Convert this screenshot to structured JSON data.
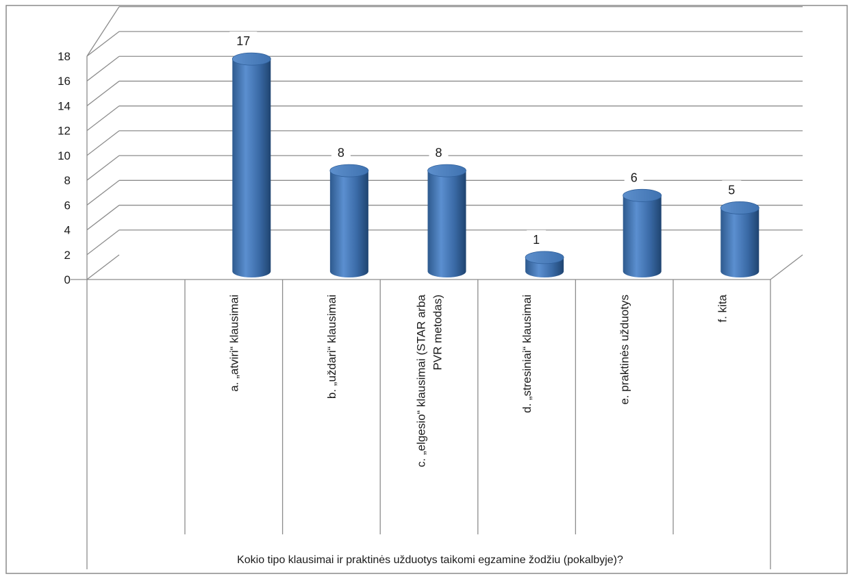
{
  "chart_data": {
    "type": "bar",
    "title": "",
    "xlabel": "Kokio tipo klausimai ir praktinės užduotys taikomi egzamine žodžiu (pokalbyje)?",
    "ylabel": "",
    "ylim": [
      0,
      18
    ],
    "yticks": [
      0,
      2,
      4,
      6,
      8,
      10,
      12,
      14,
      16,
      18
    ],
    "grid": true,
    "categories": [
      [
        "a. „atviri“ klausimai"
      ],
      [
        "b. „uždari“ klausimai"
      ],
      [
        "c. „elgesio“ klausimai (STAR arba",
        "PVR metodas)"
      ],
      [
        "d. „stresiniai“ klausimai"
      ],
      [
        "e. praktinės užduotys"
      ],
      [
        "f. kita"
      ]
    ],
    "values": [
      17,
      8,
      8,
      1,
      6,
      5
    ],
    "data_labels": [
      "17",
      "8",
      "8",
      "1",
      "6",
      "5"
    ],
    "bar_color": "#4a7ebb"
  }
}
